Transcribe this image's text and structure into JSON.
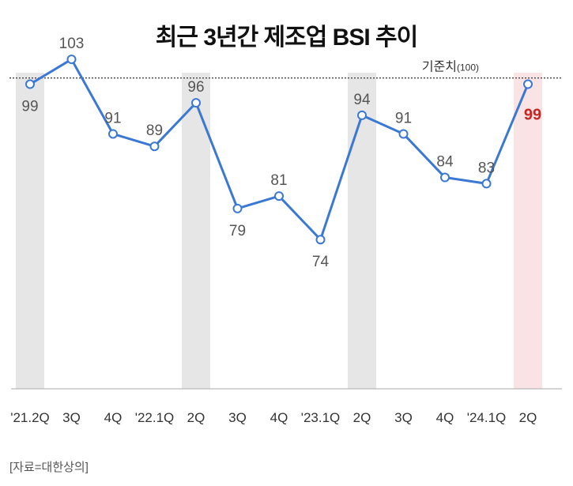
{
  "chart_data": {
    "type": "line",
    "title": "최근 3년간 제조업 BSI 추이",
    "categories": [
      "'21.2Q",
      "3Q",
      "4Q",
      "'22.1Q",
      "2Q",
      "3Q",
      "4Q",
      "'23.1Q",
      "2Q",
      "3Q",
      "4Q",
      "'24.1Q",
      "2Q"
    ],
    "values": [
      99,
      103,
      91,
      89,
      96,
      79,
      81,
      74,
      94,
      91,
      84,
      83,
      99
    ],
    "value_labels": [
      "99",
      "103",
      "91",
      "89",
      "96",
      "79",
      "81",
      "74",
      "94",
      "91",
      "84",
      "83",
      "99"
    ],
    "label_positions": [
      "below",
      "above",
      "above",
      "above",
      "above",
      "below",
      "above",
      "below",
      "above",
      "above",
      "above",
      "above",
      "below"
    ],
    "highlighted_categories": [
      0,
      4,
      8
    ],
    "current_category": 12,
    "reference_line": {
      "value": 100,
      "label": "기준치",
      "sub_label": "(100)"
    },
    "ylim": [
      50,
      110
    ],
    "xlabel": "",
    "ylabel": "",
    "grid": false
  },
  "source": "[자료=대한상의]",
  "colors": {
    "line": "#3a78d4",
    "marker_fill": "#ffffff",
    "label": "#555555",
    "current_label": "#cc2222",
    "shade": "#e6e6e6",
    "current_shade": "#fae3e5",
    "reference": "#444444",
    "axis": "#aaaaaa"
  }
}
